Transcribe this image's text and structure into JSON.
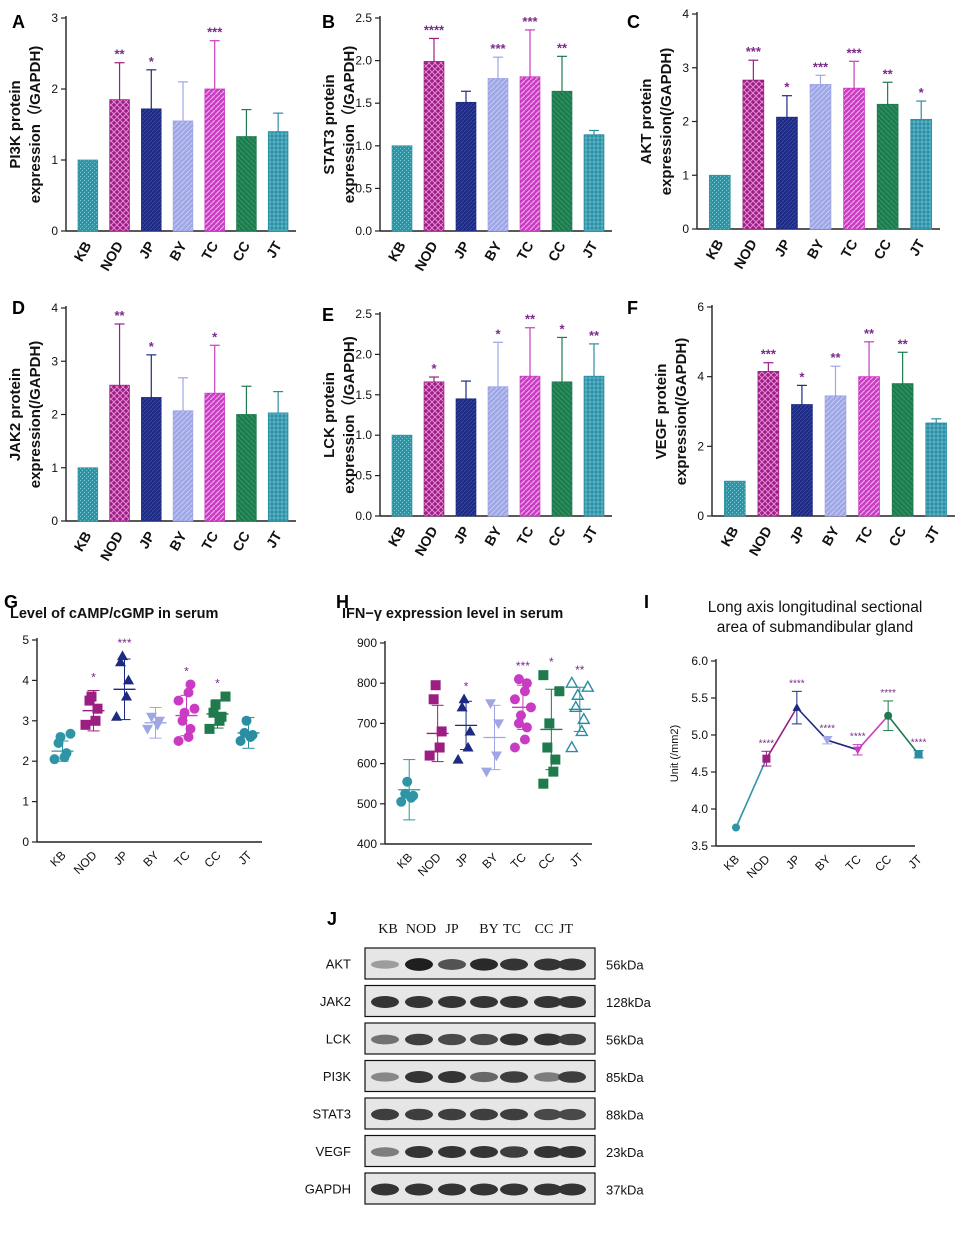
{
  "colors": {
    "KB": "#2e95a6",
    "NOD": "#9c1e82",
    "JP": "#1d2a82",
    "BY": "#9fa6e6",
    "TC": "#c93bc2",
    "CC": "#1f7a4e",
    "JT": "#2a8ea3",
    "star": "#7b2a8c",
    "axis": "#222222"
  },
  "chart_data": [
    {
      "id": "A",
      "panel_letter": "A",
      "type": "bar",
      "ylabel_lines": [
        "PI3K protein",
        "expression（/GAPDH)"
      ],
      "categories": [
        "KB",
        "NOD",
        "JP",
        "BY",
        "TC",
        "CC",
        "JT"
      ],
      "values": [
        1.0,
        1.85,
        1.72,
        1.55,
        2.0,
        1.33,
        1.4
      ],
      "errors": [
        0,
        0.52,
        0.55,
        0.55,
        0.68,
        0.38,
        0.26
      ],
      "stars": [
        "",
        "**",
        "*",
        "",
        "***",
        "",
        ""
      ],
      "ylim": [
        0,
        3
      ],
      "yticks": [
        0,
        1,
        2,
        3
      ]
    },
    {
      "id": "B",
      "panel_letter": "B",
      "type": "bar",
      "ylabel_lines": [
        "STAT3 protein",
        "expression（/GAPDH)"
      ],
      "categories": [
        "KB",
        "NOD",
        "JP",
        "BY",
        "TC",
        "CC",
        "JT"
      ],
      "values": [
        1.0,
        1.99,
        1.51,
        1.79,
        1.81,
        1.64,
        1.13
      ],
      "errors": [
        0,
        0.27,
        0.13,
        0.25,
        0.55,
        0.41,
        0.05
      ],
      "stars": [
        "",
        "****",
        "",
        "***",
        "***",
        "**",
        ""
      ],
      "ylim": [
        0,
        2.5
      ],
      "yticks": [
        0,
        0.5,
        1.0,
        1.5,
        2.0,
        2.5
      ]
    },
    {
      "id": "C",
      "panel_letter": "C",
      "type": "bar",
      "ylabel_lines": [
        "AKT protein",
        "expression(/GAPDH)"
      ],
      "categories": [
        "KB",
        "NOD",
        "JP",
        "BY",
        "TC",
        "CC",
        "JT"
      ],
      "values": [
        1.0,
        2.77,
        2.08,
        2.69,
        2.62,
        2.32,
        2.04
      ],
      "errors": [
        0,
        0.37,
        0.4,
        0.17,
        0.5,
        0.41,
        0.34
      ],
      "stars": [
        "",
        "***",
        "*",
        "***",
        "***",
        "**",
        "*"
      ],
      "ylim": [
        0,
        4
      ],
      "yticks": [
        0,
        1,
        2,
        3,
        4
      ]
    },
    {
      "id": "D",
      "panel_letter": "D",
      "type": "bar",
      "ylabel_lines": [
        "JAK2 protein",
        "expression(/GAPDH)"
      ],
      "categories": [
        "KB",
        "NOD",
        "JP",
        "BY",
        "TC",
        "CC",
        "JT"
      ],
      "values": [
        1.0,
        2.55,
        2.32,
        2.07,
        2.4,
        2.0,
        2.03
      ],
      "errors": [
        0,
        1.15,
        0.8,
        0.62,
        0.9,
        0.53,
        0.4
      ],
      "stars": [
        "",
        "**",
        "*",
        "",
        "*",
        "",
        ""
      ],
      "ylim": [
        0,
        4
      ],
      "yticks": [
        0,
        1,
        2,
        3,
        4
      ]
    },
    {
      "id": "E",
      "panel_letter": "E",
      "type": "bar",
      "ylabel_lines": [
        "LCK protein",
        "expression（/GAPDH)"
      ],
      "categories": [
        "KB",
        "NOD",
        "JP",
        "BY",
        "TC",
        "CC",
        "JT"
      ],
      "values": [
        1.0,
        1.66,
        1.45,
        1.6,
        1.73,
        1.66,
        1.73
      ],
      "errors": [
        0,
        0.06,
        0.22,
        0.55,
        0.6,
        0.55,
        0.4
      ],
      "stars": [
        "",
        "*",
        "",
        "*",
        "**",
        "*",
        "**"
      ],
      "ylim": [
        0,
        2.5
      ],
      "yticks": [
        0,
        0.5,
        1.0,
        1.5,
        2.0,
        2.5
      ]
    },
    {
      "id": "F",
      "panel_letter": "F",
      "type": "bar",
      "ylabel_lines": [
        "VEGF protein",
        "expression(/GAPDH)"
      ],
      "categories": [
        "KB",
        "NOD",
        "JP",
        "BY",
        "TC",
        "CC",
        "JT"
      ],
      "values": [
        1.0,
        4.15,
        3.2,
        3.45,
        4.0,
        3.8,
        2.67
      ],
      "errors": [
        0,
        0.25,
        0.55,
        0.85,
        1.0,
        0.9,
        0.12
      ],
      "stars": [
        "",
        "***",
        "*",
        "**",
        "**",
        "**",
        ""
      ],
      "ylim": [
        0,
        6
      ],
      "yticks": [
        0,
        2,
        4,
        6
      ]
    },
    {
      "id": "G",
      "panel_letter": "G",
      "type": "scatter",
      "title": "Level of cAMP/cGMP in serum",
      "categories": [
        "KB",
        "NOD",
        "JP",
        "BY",
        "TC",
        "CC",
        "JT"
      ],
      "markers": [
        "circle",
        "square",
        "triangle-up",
        "triangle-down",
        "circle",
        "square",
        "circle"
      ],
      "filled": [
        true,
        true,
        true,
        true,
        true,
        true,
        true
      ],
      "points": [
        [
          2.05,
          2.1,
          2.2,
          2.45,
          2.6,
          2.68
        ],
        [
          2.9,
          3.0,
          3.3,
          3.5,
          3.6
        ],
        [
          3.1,
          3.6,
          4.0,
          4.45,
          4.6
        ],
        [
          2.8,
          2.9,
          3.0,
          3.1
        ],
        [
          2.5,
          2.6,
          2.8,
          3.0,
          3.2,
          3.3,
          3.5,
          3.7,
          3.9
        ],
        [
          2.8,
          3.0,
          3.1,
          3.2,
          3.4,
          3.6
        ],
        [
          2.5,
          2.6,
          2.65,
          2.7,
          3.0
        ]
      ],
      "mean": [
        2.25,
        3.25,
        3.78,
        2.95,
        3.13,
        3.17,
        2.7
      ],
      "sd": [
        0.25,
        0.5,
        0.75,
        0.38,
        0.5,
        0.35,
        0.38
      ],
      "stars": [
        "",
        "*",
        "***",
        "",
        "*",
        "*",
        ""
      ],
      "ylim": [
        0,
        5
      ],
      "yticks": [
        0,
        1,
        2,
        3,
        4,
        5
      ]
    },
    {
      "id": "H",
      "panel_letter": "H",
      "type": "scatter",
      "title": "IFN−γ expression level in serum",
      "categories": [
        "KB",
        "NOD",
        "JP",
        "BY",
        "TC",
        "CC",
        "JT"
      ],
      "markers": [
        "circle",
        "square",
        "triangle-up",
        "triangle-down",
        "circle",
        "square",
        "triangle-up"
      ],
      "filled": [
        true,
        true,
        true,
        true,
        true,
        true,
        false
      ],
      "points": [
        [
          505,
          515,
          520,
          525,
          555
        ],
        [
          620,
          640,
          680,
          760,
          795
        ],
        [
          610,
          640,
          680,
          740,
          760
        ],
        [
          580,
          620,
          700,
          750
        ],
        [
          640,
          660,
          690,
          700,
          720,
          740,
          760,
          780,
          800,
          810
        ],
        [
          550,
          580,
          610,
          640,
          700,
          780,
          820
        ],
        [
          640,
          680,
          710,
          740,
          770,
          790,
          800
        ]
      ],
      "mean": [
        535,
        675,
        695,
        665,
        740,
        685,
        735
      ],
      "sd": [
        75,
        70,
        60,
        80,
        55,
        100,
        55
      ],
      "stars": [
        "",
        "",
        "*",
        "",
        "***",
        "*",
        "**"
      ],
      "ylim": [
        400,
        900
      ],
      "yticks": [
        400,
        500,
        600,
        700,
        800,
        900
      ]
    },
    {
      "id": "I",
      "panel_letter": "I",
      "type": "line",
      "title_lines": [
        "Long axis longitudinal sectional",
        "area of submandibular gland"
      ],
      "ylabel": "Unit (/mm2)",
      "categories": [
        "KB",
        "NOD",
        "JP",
        "BY",
        "TC",
        "CC",
        "JT"
      ],
      "values": [
        3.75,
        4.68,
        5.37,
        4.93,
        4.8,
        5.26,
        4.74
      ],
      "errors": [
        0,
        0.1,
        0.22,
        0.05,
        0.07,
        0.2,
        0.05
      ],
      "stars": [
        "",
        "****",
        "****",
        "****",
        "****",
        "****",
        "****"
      ],
      "ylim": [
        3.5,
        6.0
      ],
      "yticks": [
        3.5,
        4.0,
        4.5,
        5.0,
        5.5,
        6.0
      ]
    }
  ],
  "western_blot": {
    "panel_letter": "J",
    "lanes": [
      "KB",
      "NOD",
      "JP",
      "BY",
      "TC",
      "CC",
      "JT"
    ],
    "proteins": [
      {
        "name": "AKT",
        "size": "56kDa",
        "intensity": [
          0.35,
          0.95,
          0.7,
          0.9,
          0.85,
          0.85,
          0.85
        ]
      },
      {
        "name": "JAK2",
        "size": "128kDa",
        "intensity": [
          0.85,
          0.85,
          0.85,
          0.85,
          0.85,
          0.85,
          0.85
        ]
      },
      {
        "name": "LCK",
        "size": "56kDa",
        "intensity": [
          0.55,
          0.8,
          0.75,
          0.75,
          0.85,
          0.85,
          0.8
        ]
      },
      {
        "name": "PI3K",
        "size": "85kDa",
        "intensity": [
          0.45,
          0.85,
          0.85,
          0.6,
          0.8,
          0.5,
          0.8
        ]
      },
      {
        "name": "STAT3",
        "size": "88kDa",
        "intensity": [
          0.8,
          0.8,
          0.8,
          0.8,
          0.8,
          0.75,
          0.75
        ]
      },
      {
        "name": "VEGF",
        "size": "23kDa",
        "intensity": [
          0.5,
          0.85,
          0.85,
          0.85,
          0.8,
          0.85,
          0.85
        ]
      },
      {
        "name": "GAPDH",
        "size": "37kDa",
        "intensity": [
          0.85,
          0.85,
          0.85,
          0.85,
          0.85,
          0.85,
          0.85
        ]
      }
    ]
  }
}
